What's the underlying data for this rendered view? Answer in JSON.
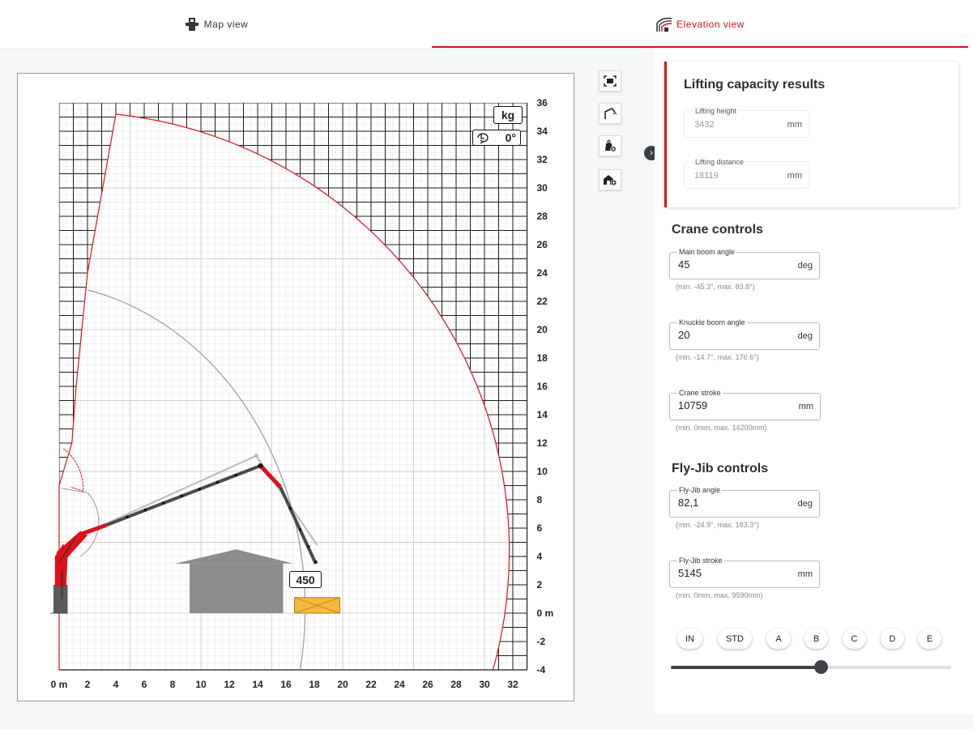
{
  "tabs": {
    "map_view": "Map view",
    "elevation_view": "Elevation view"
  },
  "diagram": {
    "unit_label": "kg",
    "slew_angle": "0°",
    "load_label": "450",
    "x_ticks": [
      "0 m",
      "2",
      "4",
      "6",
      "8",
      "10",
      "12",
      "14",
      "16",
      "18",
      "20",
      "22",
      "24",
      "26",
      "28",
      "30",
      "32"
    ],
    "y_ticks": [
      "36",
      "34",
      "32",
      "30",
      "28",
      "26",
      "24",
      "22",
      "20",
      "18",
      "16",
      "14",
      "12",
      "10",
      "8",
      "6",
      "4",
      "2",
      "0 m",
      "-2",
      "-4"
    ],
    "colors": {
      "boom": "#4a4a4a",
      "crane_red": "#e0101a",
      "envelope": "#e0101a",
      "load": "#f5b93c",
      "building": "#8c8c8c"
    }
  },
  "tools": [
    "fit-view-icon",
    "crane-outline-icon",
    "add-load-icon",
    "add-building-icon"
  ],
  "results": {
    "title": "Lifting capacity results",
    "lifting_height": {
      "label": "Lifting height",
      "value": "3432",
      "unit": "mm"
    },
    "lifting_distance": {
      "label": "Lifting distance",
      "value": "18119",
      "unit": "mm"
    }
  },
  "crane_controls": {
    "title": "Crane controls",
    "main_boom": {
      "label": "Main boom angle",
      "value": "45",
      "unit": "deg",
      "hint": "(min. -45.3°, max. 83.8°)"
    },
    "knuckle_boom": {
      "label": "Knuckle boom angle",
      "value": "20",
      "unit": "deg",
      "hint": "(min. -14.7°, max. 176.6°)"
    },
    "crane_stroke": {
      "label": "Crane stroke",
      "value": "10759",
      "unit": "mm",
      "hint": "(min. 0mm, max. 14200mm)"
    }
  },
  "flyjib_controls": {
    "title": "Fly-Jib controls",
    "angle": {
      "label": "Fly-Jib angle",
      "value": "82,1",
      "unit": "deg",
      "hint": "(min. -24.9°, max. 183.3°)"
    },
    "stroke": {
      "label": "Fly-Jib stroke",
      "value": "5145",
      "unit": "mm",
      "hint": "(min. 0mm, max. 9590mm)"
    }
  },
  "presets": [
    "IN",
    "STD",
    "A",
    "B",
    "C",
    "D",
    "E"
  ],
  "slider": {
    "value_fraction": 0.535
  }
}
